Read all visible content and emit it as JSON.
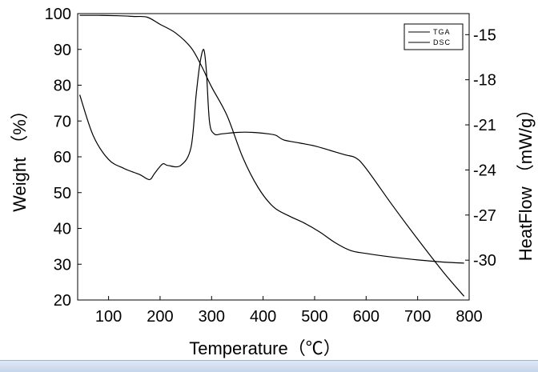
{
  "chart_data": {
    "type": "line",
    "xlabel": "Temperature（℃）",
    "ylabel_left": "Weight （%）",
    "ylabel_right": "HeatFlow （mW/g）",
    "xlim": [
      40,
      800
    ],
    "ylim_left": [
      20,
      100
    ],
    "ylim_right": [
      -32.65,
      -13.6
    ],
    "x_ticks": [
      100,
      200,
      300,
      400,
      500,
      600,
      700,
      800
    ],
    "y_ticks_left": [
      20,
      30,
      40,
      50,
      60,
      70,
      80,
      90,
      100
    ],
    "y_ticks_right": [
      -15,
      -18,
      -21,
      -24,
      -27,
      -30
    ],
    "grid": false,
    "legend_position": "top-right",
    "series": [
      {
        "name": "TGA",
        "axis": "left",
        "color": "#000000",
        "x": [
          44,
          80,
          120,
          150,
          175,
          200,
          230,
          260,
          280,
          300,
          330,
          360,
          390,
          420,
          450,
          480,
          510,
          540,
          570,
          600,
          650,
          700,
          750,
          790
        ],
        "y": [
          99.5,
          99.5,
          99.4,
          99.2,
          99.0,
          97.0,
          94.6,
          90.5,
          85.5,
          79.5,
          71.5,
          60.0,
          51.5,
          46.0,
          43.5,
          41.5,
          39.0,
          36.0,
          33.8,
          33.0,
          32.0,
          31.2,
          30.6,
          30.3
        ]
      },
      {
        "name": "DSC",
        "axis": "right",
        "color": "#000000",
        "x": [
          44,
          70,
          100,
          130,
          160,
          175,
          182,
          190,
          205,
          215,
          240,
          260,
          270,
          278,
          285,
          290,
          296,
          305,
          320,
          350,
          380,
          410,
          425,
          440,
          470,
          500,
          530,
          560,
          580,
          600,
          650,
          700,
          750,
          790
        ],
        "y": [
          -19.0,
          -21.7,
          -23.3,
          -23.9,
          -24.3,
          -24.6,
          -24.6,
          -24.2,
          -23.6,
          -23.7,
          -23.7,
          -22.5,
          -19.0,
          -16.8,
          -16.0,
          -17.5,
          -20.8,
          -21.6,
          -21.6,
          -21.5,
          -21.5,
          -21.6,
          -21.7,
          -22.0,
          -22.2,
          -22.4,
          -22.7,
          -23.0,
          -23.2,
          -23.9,
          -26.3,
          -28.6,
          -30.8,
          -32.4
        ]
      }
    ]
  }
}
